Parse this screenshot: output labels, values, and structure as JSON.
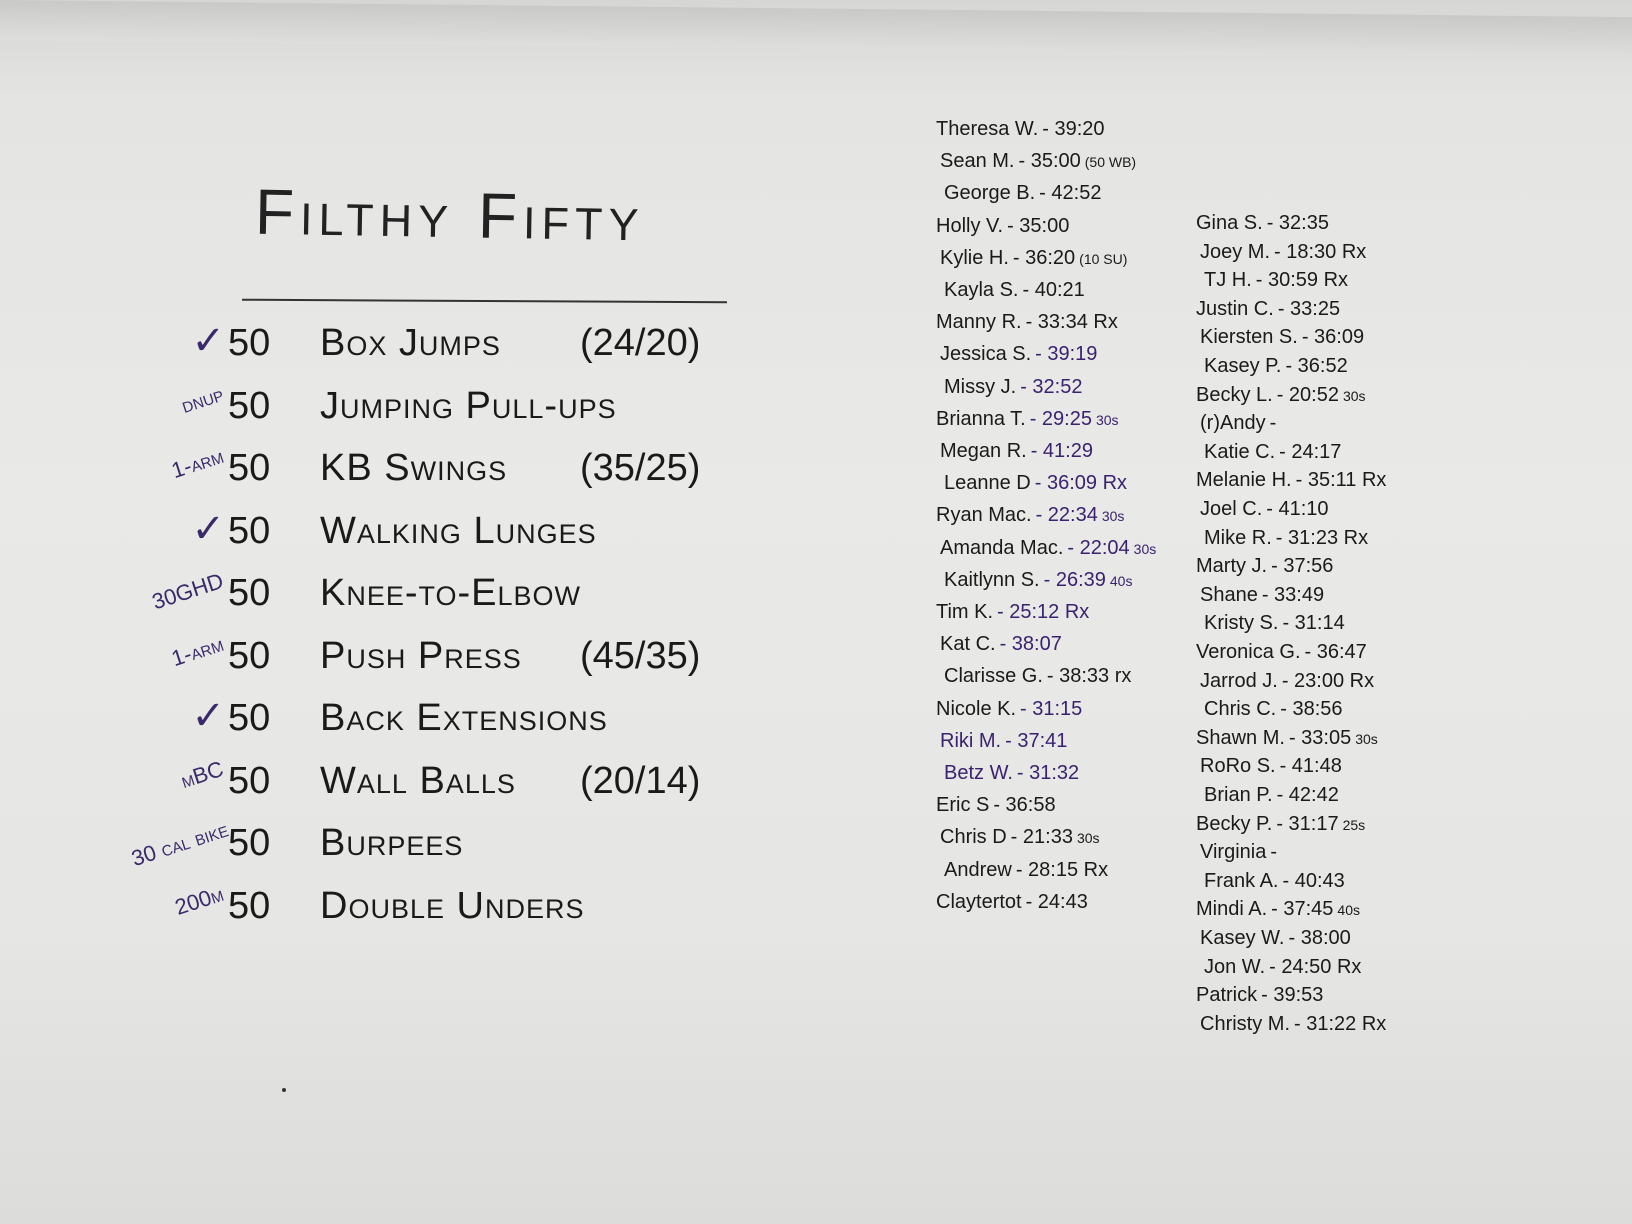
{
  "ink_colors": {
    "black": "#1a1a1a",
    "purple": "#3a2270"
  },
  "title": "Filthy Fifty",
  "exercises": [
    {
      "mod": "✓",
      "count": "50",
      "name": "Box Jumps",
      "weight": "(24/20)"
    },
    {
      "mod": "dnup",
      "count": "50",
      "name": "Jumping Pull-ups",
      "weight": ""
    },
    {
      "mod": "1-arm",
      "count": "50",
      "name": "KB Swings",
      "weight": "(35/25)"
    },
    {
      "mod": "✓",
      "count": "50",
      "name": "Walking Lunges",
      "weight": ""
    },
    {
      "mod": "30GHD",
      "count": "50",
      "name": "Knee-to-Elbow",
      "weight": ""
    },
    {
      "mod": "1-arm",
      "count": "50",
      "name": "Push Press",
      "weight": "(45/35)"
    },
    {
      "mod": "✓",
      "count": "50",
      "name": "Back Extensions",
      "weight": ""
    },
    {
      "mod": "mBC",
      "count": "50",
      "name": "Wall Balls",
      "weight": "(20/14)"
    },
    {
      "mod": "30 cal bike",
      "count": "50",
      "name": "Burpees",
      "weight": ""
    },
    {
      "mod": "200m",
      "count": "50",
      "name": "Double Unders",
      "weight": ""
    }
  ],
  "results_left": [
    {
      "name": "Theresa W.",
      "time": "- 39:20",
      "note": "",
      "ink": "black"
    },
    {
      "name": "Sean M.",
      "time": "- 35:00",
      "note": "(50 WB)",
      "ink": "black"
    },
    {
      "name": "George B.",
      "time": "- 42:52",
      "note": "",
      "ink": "black"
    },
    {
      "name": "Holly V.",
      "time": "- 35:00",
      "note": "",
      "ink": "black"
    },
    {
      "name": "Kylie H.",
      "time": "- 36:20",
      "note": "(10 SU)",
      "ink": "black"
    },
    {
      "name": "Kayla S.",
      "time": "- 40:21",
      "note": "",
      "ink": "black"
    },
    {
      "name": "Manny R.",
      "time": "- 33:34 Rx",
      "note": "",
      "ink": "black"
    },
    {
      "name": "Jessica S.",
      "time": "- 39:19",
      "note": "",
      "ink": "purple"
    },
    {
      "name": "Missy J.",
      "time": "- 32:52",
      "note": "",
      "ink": "purple"
    },
    {
      "name": "Brianna T.",
      "time": "- 29:25",
      "note": "30s",
      "ink": "purple"
    },
    {
      "name": "Megan R.",
      "time": "- 41:29",
      "note": "",
      "ink": "purple"
    },
    {
      "name": "Leanne D",
      "time": "- 36:09 Rx",
      "note": "",
      "ink": "purple"
    },
    {
      "name": "Ryan Mac.",
      "time": "- 22:34",
      "note": "30s",
      "ink": "purple"
    },
    {
      "name": "Amanda Mac.",
      "time": "- 22:04",
      "note": "30s",
      "ink": "purple"
    },
    {
      "name": "Kaitlynn S.",
      "time": "- 26:39",
      "note": "40s",
      "ink": "purple"
    },
    {
      "name": "Tim K.",
      "time": "- 25:12 Rx",
      "note": "",
      "ink": "purple"
    },
    {
      "name": "Kat C.",
      "time": "- 38:07",
      "note": "",
      "ink": "purple"
    },
    {
      "name": "Clarisse G.",
      "time": "- 38:33 rx",
      "note": "",
      "ink": "black"
    },
    {
      "name": "Nicole K.",
      "time": "- 31:15",
      "note": "",
      "ink": "purple"
    },
    {
      "name": "Riki M.",
      "time": "- 37:41",
      "note": "",
      "ink": "purple",
      "name_ink": "purple"
    },
    {
      "name": "Betz W.",
      "time": "- 31:32",
      "note": "",
      "ink": "purple",
      "name_ink": "purple"
    },
    {
      "name": "Eric S",
      "time": "- 36:58",
      "note": "",
      "ink": "black"
    },
    {
      "name": "Chris D",
      "time": "- 21:33",
      "note": "30s",
      "ink": "black"
    },
    {
      "name": "Andrew",
      "time": "- 28:15 Rx",
      "note": "",
      "ink": "black"
    },
    {
      "name": "Claytertot",
      "time": "- 24:43",
      "note": "",
      "ink": "black"
    }
  ],
  "results_right": [
    {
      "name": "Gina S.",
      "time": "- 32:35",
      "note": ""
    },
    {
      "name": "Joey M.",
      "time": "- 18:30 Rx",
      "note": ""
    },
    {
      "name": "TJ H.",
      "time": "- 30:59 Rx",
      "note": ""
    },
    {
      "name": "Justin C.",
      "time": "- 33:25",
      "note": ""
    },
    {
      "name": "Kiersten S.",
      "time": "- 36:09",
      "note": ""
    },
    {
      "name": "Kasey P.",
      "time": "- 36:52",
      "note": ""
    },
    {
      "name": "Becky L.",
      "time": "- 20:52",
      "note": "30s"
    },
    {
      "name": "(r)Andy",
      "time": "-",
      "note": ""
    },
    {
      "name": "Katie C.",
      "time": "- 24:17",
      "note": ""
    },
    {
      "name": "Melanie H.",
      "time": "- 35:11 Rx",
      "note": ""
    },
    {
      "name": "Joel C.",
      "time": "- 41:10",
      "note": ""
    },
    {
      "name": "Mike R.",
      "time": "- 31:23 Rx",
      "note": ""
    },
    {
      "name": "Marty J.",
      "time": "- 37:56",
      "note": ""
    },
    {
      "name": "Shane",
      "time": "- 33:49",
      "note": ""
    },
    {
      "name": "Kristy S.",
      "time": "- 31:14",
      "note": ""
    },
    {
      "name": "Veronica G.",
      "time": "- 36:47",
      "note": ""
    },
    {
      "name": "Jarrod J.",
      "time": "- 23:00 Rx",
      "note": ""
    },
    {
      "name": "Chris C.",
      "time": "- 38:56",
      "note": ""
    },
    {
      "name": "Shawn M.",
      "time": "- 33:05",
      "note": "30s"
    },
    {
      "name": "RoRo S.",
      "time": "- 41:48",
      "note": ""
    },
    {
      "name": "Brian P.",
      "time": "- 42:42",
      "note": ""
    },
    {
      "name": "Becky P.",
      "time": "- 31:17",
      "note": "25s"
    },
    {
      "name": "Virginia",
      "time": "-",
      "note": ""
    },
    {
      "name": "Frank A.",
      "time": "- 40:43",
      "note": ""
    },
    {
      "name": "Mindi A.",
      "time": "- 37:45",
      "note": "40s"
    },
    {
      "name": "Kasey W.",
      "time": "- 38:00",
      "note": ""
    },
    {
      "name": "Jon W.",
      "time": "- 24:50 Rx",
      "note": ""
    },
    {
      "name": "Patrick",
      "time": "- 39:53",
      "note": ""
    },
    {
      "name": "Christy M.",
      "time": "- 31:22 Rx",
      "note": ""
    }
  ]
}
